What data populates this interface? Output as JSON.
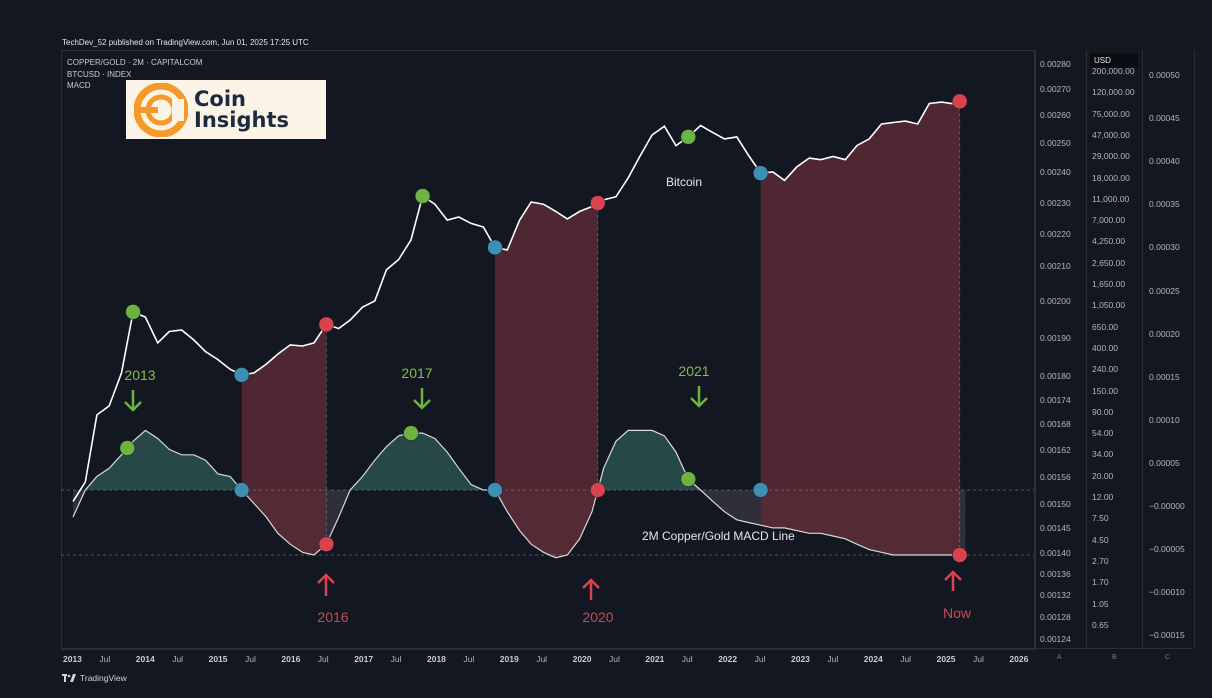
{
  "header": {
    "credit": "TechDev_52 published on TradingView.com, Jun 01, 2025 17:25 UTC"
  },
  "legend": {
    "line1": "COPPER/GOLD · 2M · CAPITALCOM",
    "line2": "BTCUSD · INDEX",
    "line3": "MACD"
  },
  "logo": {
    "line1": "Coin",
    "line2": "Insights",
    "tm": "™"
  },
  "axis_a": {
    "ticks": [
      "0.00280",
      "0.00270",
      "0.00260",
      "0.00250",
      "0.00240",
      "0.00230",
      "0.00220",
      "0.00210",
      "0.00200",
      "0.00190",
      "0.00180",
      "0.00174",
      "0.00168",
      "0.00162",
      "0.00156",
      "0.00150",
      "0.00145",
      "0.00140",
      "0.00136",
      "0.00132",
      "0.00128",
      "0.00124"
    ]
  },
  "axis_b": {
    "currency": "USD",
    "ticks": [
      "200,000.00",
      "120,000.00",
      "75,000.00",
      "47,000.00",
      "29,000.00",
      "18,000.00",
      "11,000.00",
      "7,000.00",
      "4,250.00",
      "2,650.00",
      "1,650.00",
      "1,050.00",
      "650.00",
      "400.00",
      "240.00",
      "150.00",
      "90.00",
      "54.00",
      "34.00",
      "20.00",
      "12.00",
      "7.50",
      "4.50",
      "2.70",
      "1.70",
      "1.05",
      "0.65"
    ]
  },
  "axis_c": {
    "ticks": [
      "0.00050",
      "0.00045",
      "0.00040",
      "0.00035",
      "0.00030",
      "0.00025",
      "0.00020",
      "0.00015",
      "0.00010",
      "0.00005",
      "−0.00000",
      "−0.00005",
      "−0.00010",
      "−0.00015"
    ]
  },
  "time_axis": {
    "labels": [
      "2013",
      "Jul",
      "2014",
      "Jul",
      "2015",
      "Jul",
      "2016",
      "Jul",
      "2017",
      "Jul",
      "2018",
      "Jul",
      "2019",
      "Jul",
      "2020",
      "Jul",
      "2021",
      "Jul",
      "2022",
      "Jul",
      "2023",
      "Jul",
      "2024",
      "Jul",
      "2025",
      "Jul",
      "2026"
    ],
    "panes": [
      "A",
      "B",
      "C"
    ]
  },
  "annotations": {
    "green_years": [
      "2013",
      "2017",
      "2021"
    ],
    "red_years": [
      "2016",
      "2020",
      "Now"
    ],
    "bitcoin_label": "Bitcoin",
    "macd_label": "2M Copper/Gold MACD Line"
  },
  "colors": {
    "background": "#131722",
    "bitcoin_line": "#ffffff",
    "macd_line": "#d9d9d9",
    "bull_fill": "#2f5a57",
    "bear_fill": "#5a2a35",
    "green_marker": "#6cb33f",
    "red_marker": "#d9434e",
    "blue_marker": "#3d8fb3"
  },
  "footer": {
    "brand": "TradingView"
  },
  "chart_data": [
    {
      "type": "line",
      "series": [
        {
          "name": "Bitcoin",
          "x": [
            2013.0,
            2013.17,
            2013.33,
            2013.5,
            2013.67,
            2013.83,
            2014.0,
            2014.17,
            2014.33,
            2014.5,
            2014.67,
            2014.83,
            2015.0,
            2015.17,
            2015.33,
            2015.5,
            2015.67,
            2015.83,
            2016.0,
            2016.17,
            2016.33,
            2016.5,
            2016.67,
            2016.83,
            2017.0,
            2017.17,
            2017.33,
            2017.5,
            2017.67,
            2017.83,
            2018.0,
            2018.17,
            2018.33,
            2018.5,
            2018.67,
            2018.83,
            2019.0,
            2019.17,
            2019.33,
            2019.5,
            2019.67,
            2019.83,
            2020.0,
            2020.17,
            2020.33,
            2020.5,
            2020.67,
            2020.83,
            2021.0,
            2021.17,
            2021.33,
            2021.5,
            2021.67,
            2021.83,
            2022.0,
            2022.17,
            2022.33,
            2022.5,
            2022.67,
            2022.83,
            2023.0,
            2023.17,
            2023.33,
            2023.5,
            2023.67,
            2023.83,
            2024.0,
            2024.17,
            2024.33,
            2024.5,
            2024.67,
            2024.83,
            2025.0,
            2025.17,
            2025.33
          ],
          "y": [
            13,
            20,
            90,
            110,
            230,
            900,
            800,
            450,
            580,
            600,
            480,
            370,
            310,
            250,
            220,
            230,
            280,
            350,
            430,
            420,
            450,
            680,
            620,
            750,
            1000,
            1150,
            2300,
            2900,
            4500,
            12000,
            10000,
            7000,
            7500,
            6500,
            6000,
            3800,
            3600,
            7000,
            10500,
            10000,
            8500,
            7200,
            8500,
            9500,
            11000,
            11800,
            18000,
            29000,
            47000,
            57000,
            37000,
            45000,
            58000,
            50000,
            43000,
            45000,
            30000,
            20000,
            20500,
            17000,
            23000,
            28000,
            27000,
            29000,
            27000,
            37000,
            43000,
            60000,
            62000,
            64000,
            60000,
            95000,
            98000,
            94000,
            105000
          ]
        },
        {
          "name": "2M Copper/Gold MACD Line",
          "x": [
            2013.0,
            2013.17,
            2013.33,
            2013.5,
            2013.67,
            2013.83,
            2014.0,
            2014.17,
            2014.33,
            2014.5,
            2014.67,
            2014.83,
            2015.0,
            2015.17,
            2015.33,
            2015.5,
            2015.67,
            2015.83,
            2016.0,
            2016.17,
            2016.33,
            2016.5,
            2016.67,
            2016.83,
            2017.0,
            2017.17,
            2017.33,
            2017.5,
            2017.67,
            2017.83,
            2018.0,
            2018.17,
            2018.33,
            2018.5,
            2018.67,
            2018.83,
            2019.0,
            2019.17,
            2019.33,
            2019.5,
            2019.67,
            2019.83,
            2020.0,
            2020.17,
            2020.33,
            2020.5,
            2020.67,
            2020.83,
            2021.0,
            2021.17,
            2021.33,
            2021.5,
            2021.67,
            2021.83,
            2022.0,
            2022.17,
            2022.33,
            2022.5,
            2022.67,
            2022.83,
            2023.0,
            2023.17,
            2023.33,
            2023.5,
            2023.67,
            2023.83,
            2024.0,
            2024.17,
            2024.33,
            2024.5,
            2024.67,
            2024.83,
            2025.0,
            2025.17,
            2025.33
          ],
          "y": [
            -1e-05,
            0.0,
            5e-06,
            8e-06,
            1.3e-05,
            1.8e-05,
            2.2e-05,
            1.9e-05,
            1.5e-05,
            1.3e-05,
            1.3e-05,
            1.1e-05,
            6e-06,
            5e-06,
            0.0,
            -5e-06,
            -1e-05,
            -1.6e-05,
            -2e-05,
            -2.3e-05,
            -2.4e-05,
            -2e-05,
            -1e-05,
            0.0,
            5e-06,
            1.1e-05,
            1.6e-05,
            2e-05,
            2.1e-05,
            2.1e-05,
            1.9e-05,
            1.4e-05,
            8e-06,
            2e-06,
            0.0,
            0.0,
            -8e-06,
            -1.5e-05,
            -2e-05,
            -2.3e-05,
            -2.5e-05,
            -2.4e-05,
            -1.8e-05,
            -8e-06,
            8e-06,
            1.8e-05,
            2.2e-05,
            2.2e-05,
            2.2e-05,
            2e-05,
            1.4e-05,
            4e-06,
            0.0,
            -4e-06,
            -8e-06,
            -1.1e-05,
            -1.2e-05,
            -1.3e-05,
            -1.4e-05,
            -1.4e-05,
            -1.5e-05,
            -1.6e-05,
            -1.6e-05,
            -1.7e-05,
            -1.8e-05,
            -2e-05,
            -2.2e-05,
            -2.3e-05,
            -2.4e-05,
            -2.4e-05,
            -2.4e-05,
            -2.4e-05,
            -2.4e-05,
            -2.4e-05,
            -2.4e-05
          ]
        }
      ],
      "y_scale_bitcoin": "log",
      "xlim": [
        2013.0,
        2026.0
      ],
      "ylim_macd": [
        -0.00017,
        0.00051
      ],
      "markers_macd_peaks": [
        2013.75,
        2017.67,
        2021.5
      ],
      "markers_macd_troughs": [
        2016.5,
        2020.25,
        2025.25
      ],
      "grid": false
    }
  ]
}
